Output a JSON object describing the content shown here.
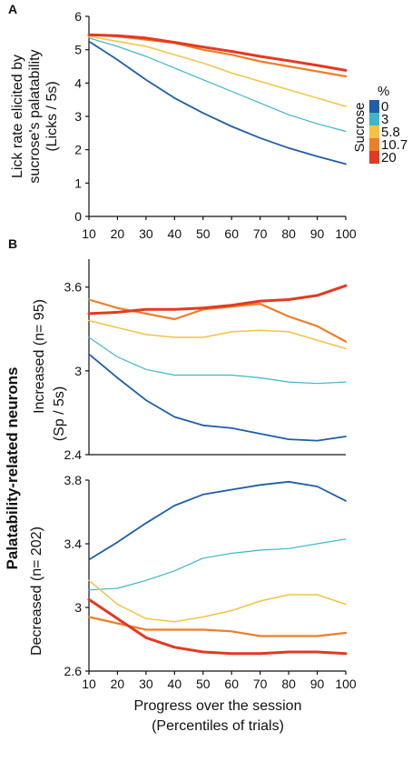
{
  "panel_labels": {
    "a": "A",
    "b": "B"
  },
  "figure_title": "Palatability-related neurons",
  "xlabel_line1": "Progress over the session",
  "xlabel_line2": "(Percentiles of trials)",
  "legend": {
    "title": "Sucrose",
    "unit": "%",
    "entries": [
      {
        "label": "0",
        "color": "#1f5ea8"
      },
      {
        "label": "3",
        "color": "#3db7c9"
      },
      {
        "label": "5.8",
        "color": "#f6c244"
      },
      {
        "label": "10.7",
        "color": "#ec7f2a"
      },
      {
        "label": "20",
        "color": "#e23a22"
      }
    ]
  },
  "chart_data": [
    {
      "type": "line",
      "panel": "A",
      "ylabel_lines": [
        "Lick rate elicited by",
        "sucrose's palatability",
        "(Licks / 5s)"
      ],
      "x": [
        10,
        20,
        30,
        40,
        50,
        60,
        70,
        80,
        90,
        100
      ],
      "xlim": [
        10,
        100
      ],
      "ylim": [
        0,
        6
      ],
      "xticks": [
        "10",
        "20",
        "30",
        "40",
        "50",
        "60",
        "70",
        "80",
        "90",
        "100"
      ],
      "yticks": [
        "0",
        "1",
        "2",
        "3",
        "4",
        "5",
        "6"
      ],
      "series": [
        {
          "name": "0",
          "color": "#1f5ea8",
          "width": 1.8,
          "values": [
            5.25,
            4.7,
            4.1,
            3.55,
            3.1,
            2.7,
            2.35,
            2.05,
            1.8,
            1.57
          ]
        },
        {
          "name": "3",
          "color": "#3db7c9",
          "width": 1.2,
          "values": [
            5.35,
            5.1,
            4.8,
            4.45,
            4.1,
            3.75,
            3.4,
            3.05,
            2.78,
            2.55
          ]
        },
        {
          "name": "5.8",
          "color": "#f6c244",
          "width": 1.5,
          "values": [
            5.4,
            5.25,
            5.1,
            4.85,
            4.6,
            4.3,
            4.05,
            3.8,
            3.55,
            3.3
          ]
        },
        {
          "name": "10.7",
          "color": "#ec7f2a",
          "width": 2.2,
          "values": [
            5.45,
            5.4,
            5.3,
            5.2,
            5.0,
            4.85,
            4.65,
            4.5,
            4.35,
            4.2
          ]
        },
        {
          "name": "20",
          "color": "#e23a22",
          "width": 3.0,
          "values": [
            5.45,
            5.42,
            5.35,
            5.22,
            5.08,
            4.95,
            4.8,
            4.67,
            4.53,
            4.38
          ]
        }
      ]
    },
    {
      "type": "line",
      "panel": "B-increased",
      "ylabel_lines": [
        "Increased (n= 95)",
        "(Sp / 5s)"
      ],
      "x": [
        10,
        20,
        30,
        40,
        50,
        60,
        70,
        80,
        90,
        100
      ],
      "xlim": [
        10,
        100
      ],
      "ylim": [
        2.4,
        3.8
      ],
      "xticks": [],
      "yticks": [
        "2.4",
        "3",
        "3.6"
      ],
      "series": [
        {
          "name": "0",
          "color": "#1f5ea8",
          "width": 1.8,
          "values": [
            3.12,
            2.95,
            2.79,
            2.67,
            2.61,
            2.59,
            2.55,
            2.51,
            2.5,
            2.53
          ]
        },
        {
          "name": "3",
          "color": "#3db7c9",
          "width": 1.2,
          "values": [
            3.24,
            3.1,
            3.01,
            2.97,
            2.97,
            2.97,
            2.95,
            2.92,
            2.91,
            2.92
          ]
        },
        {
          "name": "5.8",
          "color": "#f6c244",
          "width": 1.5,
          "values": [
            3.36,
            3.31,
            3.26,
            3.24,
            3.24,
            3.28,
            3.29,
            3.28,
            3.22,
            3.16
          ]
        },
        {
          "name": "10.7",
          "color": "#ec7f2a",
          "width": 2.2,
          "values": [
            3.51,
            3.45,
            3.41,
            3.37,
            3.44,
            3.46,
            3.48,
            3.39,
            3.32,
            3.21
          ]
        },
        {
          "name": "20",
          "color": "#e23a22",
          "width": 3.0,
          "values": [
            3.41,
            3.42,
            3.44,
            3.44,
            3.45,
            3.47,
            3.5,
            3.51,
            3.54,
            3.61
          ]
        }
      ]
    },
    {
      "type": "line",
      "panel": "B-decreased",
      "ylabel_lines": [
        "Decreased (n= 202)"
      ],
      "x": [
        10,
        20,
        30,
        40,
        50,
        60,
        70,
        80,
        90,
        100
      ],
      "xlim": [
        10,
        100
      ],
      "ylim": [
        2.6,
        3.8
      ],
      "xticks": [
        "10",
        "20",
        "30",
        "40",
        "50",
        "60",
        "70",
        "80",
        "90",
        "100"
      ],
      "yticks": [
        "2.6",
        "3",
        "3.4",
        "3.8"
      ],
      "series": [
        {
          "name": "0",
          "color": "#1f5ea8",
          "width": 1.8,
          "values": [
            3.3,
            3.41,
            3.53,
            3.64,
            3.71,
            3.74,
            3.77,
            3.79,
            3.76,
            3.67
          ]
        },
        {
          "name": "3",
          "color": "#3db7c9",
          "width": 1.2,
          "values": [
            3.11,
            3.12,
            3.17,
            3.23,
            3.31,
            3.34,
            3.36,
            3.37,
            3.4,
            3.43
          ]
        },
        {
          "name": "5.8",
          "color": "#f6c244",
          "width": 1.5,
          "values": [
            3.17,
            3.02,
            2.93,
            2.91,
            2.94,
            2.98,
            3.04,
            3.08,
            3.08,
            3.02
          ]
        },
        {
          "name": "10.7",
          "color": "#ec7f2a",
          "width": 2.2,
          "values": [
            2.94,
            2.9,
            2.86,
            2.86,
            2.86,
            2.85,
            2.82,
            2.82,
            2.82,
            2.84
          ]
        },
        {
          "name": "20",
          "color": "#e23a22",
          "width": 3.0,
          "values": [
            3.05,
            2.93,
            2.81,
            2.75,
            2.72,
            2.71,
            2.71,
            2.72,
            2.72,
            2.71
          ]
        }
      ]
    }
  ]
}
